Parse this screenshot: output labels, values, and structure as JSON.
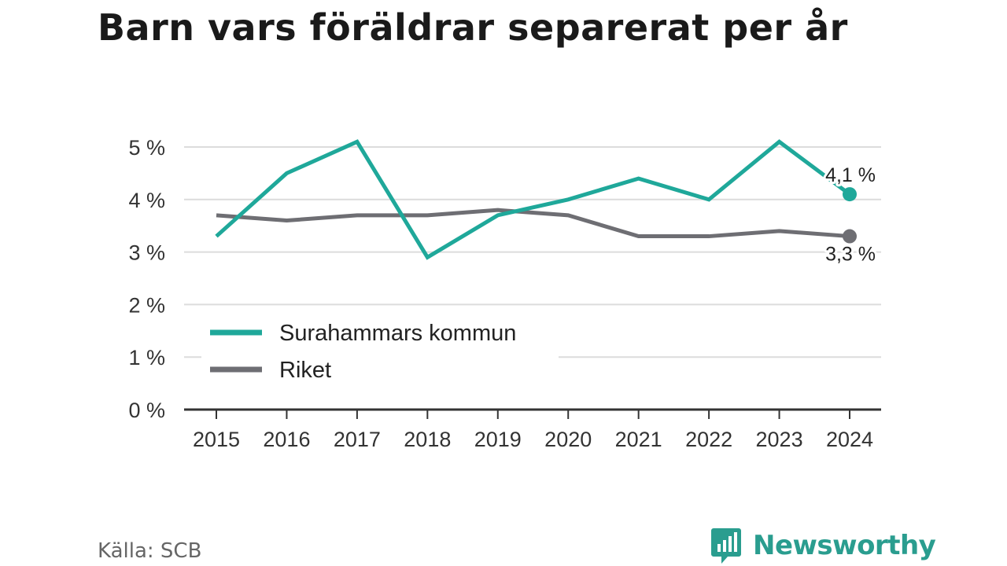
{
  "title": "Barn vars föräldrar separerat per år",
  "source": "Källa: SCB",
  "brand": {
    "name": "Newsworthy",
    "icon": "newsworthy-logo-icon",
    "color": "#2a9d8f"
  },
  "chart_data": {
    "type": "line",
    "title": "Barn vars föräldrar separerat per år",
    "xlabel": "",
    "ylabel": "",
    "categories": [
      "2015",
      "2016",
      "2017",
      "2018",
      "2019",
      "2020",
      "2021",
      "2022",
      "2023",
      "2024"
    ],
    "y_ticks": [
      0,
      1,
      2,
      3,
      4,
      5
    ],
    "y_tick_labels": [
      "0 %",
      "1 %",
      "2 %",
      "3 %",
      "4 %",
      "5 %"
    ],
    "ylim": [
      0,
      5.5
    ],
    "grid": true,
    "legend_position": "bottom-left",
    "series": [
      {
        "name": "Surahammars kommun",
        "color": "#1fa89a",
        "values": [
          3.3,
          4.5,
          5.1,
          2.9,
          3.7,
          4.0,
          4.4,
          4.0,
          5.1,
          4.1
        ],
        "end_label": "4,1 %"
      },
      {
        "name": "Riket",
        "color": "#6e6e73",
        "values": [
          3.7,
          3.6,
          3.7,
          3.7,
          3.8,
          3.7,
          3.3,
          3.3,
          3.4,
          3.3
        ],
        "end_label": "3,3 %"
      }
    ]
  }
}
